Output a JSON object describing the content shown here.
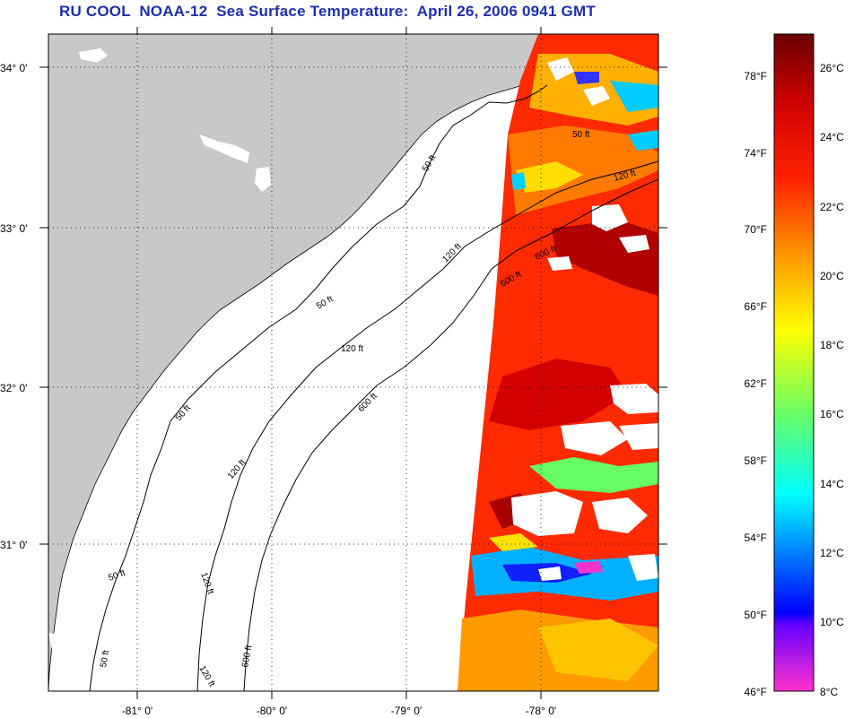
{
  "title": "RU COOL  NOAA-12  Sea Surface Temperature:  April 26, 2006 0941 GMT",
  "map": {
    "lat_labels": [
      "34° 0'",
      "33° 0'",
      "32° 0'",
      "31° 0'"
    ],
    "lon_labels": [
      "-81° 0'",
      "-80° 0'",
      "-79° 0'",
      "-78° 0'"
    ],
    "contour_labels": [
      "50 ft",
      "50 ft",
      "50 ft",
      "50 ft",
      "50 ft",
      "50 ft",
      "120 ft",
      "120 ft",
      "120 ft",
      "120 ft",
      "120 ft",
      "120 ft",
      "600 ft",
      "600 ft",
      "600 ft",
      "600 ft"
    ]
  },
  "colorbar": {
    "fahrenheit_labels": [
      "78°F",
      "74°F",
      "70°F",
      "66°F",
      "62°F",
      "58°F",
      "54°F",
      "50°F",
      "46°F"
    ],
    "celsius_labels": [
      "26°C",
      "24°C",
      "22°C",
      "20°C",
      "18°C",
      "16°C",
      "14°C",
      "12°C",
      "10°C",
      "8°C"
    ],
    "colors": [
      "#ff33cc",
      "#6600ff",
      "#0000ff",
      "#00aaff",
      "#00ffff",
      "#66ff66",
      "#ffff00",
      "#ff9900",
      "#ff2200",
      "#cc0000",
      "#6b0000"
    ]
  }
}
